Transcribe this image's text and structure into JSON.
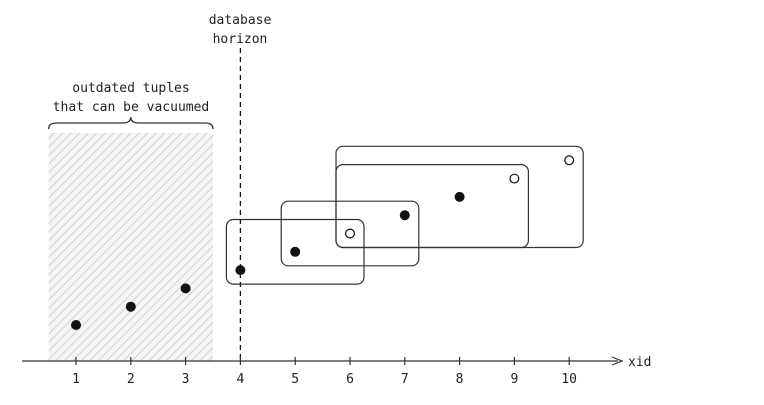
{
  "axis": {
    "label": "xid",
    "ticks": [
      "1",
      "2",
      "3",
      "4",
      "5",
      "6",
      "7",
      "8",
      "9",
      "10"
    ]
  },
  "horizon": {
    "label_line1": "database",
    "label_line2": "horizon",
    "xid": 4
  },
  "vacuum_region": {
    "label_line1": "outdated tuples",
    "label_line2": "that can be vacuumed",
    "from_xid": 0.5,
    "to_xid": 3.5
  },
  "points": [
    {
      "xid": 1,
      "level": 1,
      "filled": true
    },
    {
      "xid": 2,
      "level": 2,
      "filled": true
    },
    {
      "xid": 3,
      "level": 3,
      "filled": true
    },
    {
      "xid": 4,
      "level": 4,
      "filled": true
    },
    {
      "xid": 5,
      "level": 5,
      "filled": true
    },
    {
      "xid": 6,
      "level": 6,
      "filled": false
    },
    {
      "xid": 7,
      "level": 7,
      "filled": true
    },
    {
      "xid": 8,
      "level": 8,
      "filled": true
    },
    {
      "xid": 9,
      "level": 9,
      "filled": false
    },
    {
      "xid": 10,
      "level": 10,
      "filled": false
    }
  ],
  "snapshots": [
    {
      "from_xid": 4,
      "to_xid": 6,
      "bottom_level": 4,
      "top_level": 6
    },
    {
      "from_xid": 5,
      "to_xid": 7,
      "bottom_level": 5,
      "top_level": 7
    },
    {
      "from_xid": 6,
      "to_xid": 9,
      "bottom_level": 6,
      "top_level": 9
    },
    {
      "from_xid": 6,
      "to_xid": 10,
      "bottom_level": 6,
      "top_level": 10
    }
  ],
  "colors": {
    "ink": "#111111",
    "hatch": "#d4d4d4",
    "box": "#333333"
  }
}
